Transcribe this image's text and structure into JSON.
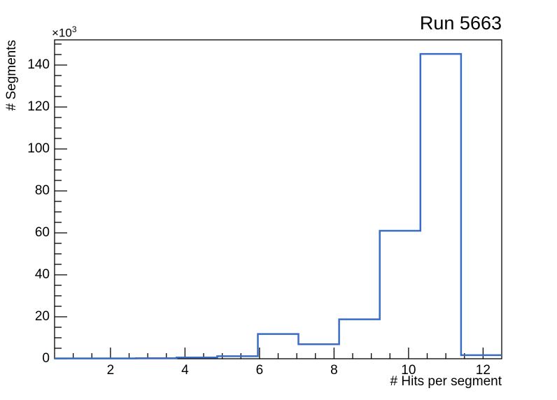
{
  "chart_data": {
    "type": "histogram-step",
    "title": "Run 5663",
    "xlabel": "# Hits per segment",
    "ylabel": "# Segments",
    "y_axis_exponent": "×10",
    "y_axis_exponent_power": "3",
    "y_unit_note": "y values expressed in thousands (axis shows ×10^3)",
    "xlim": [
      0.5,
      12.5
    ],
    "ylim": [
      0,
      152
    ],
    "n_bins": 11,
    "bin_edges": [
      0.5,
      1.591,
      2.682,
      3.773,
      4.864,
      5.955,
      7.045,
      8.136,
      9.227,
      10.318,
      11.409,
      12.5
    ],
    "values_thousands": [
      0.15,
      0.15,
      0.25,
      0.6,
      1.2,
      11.8,
      6.9,
      18.8,
      61.0,
      145.3,
      1.7
    ],
    "x_major_ticks": [
      2,
      4,
      6,
      8,
      10,
      12
    ],
    "x_minor_step": 0.5,
    "y_major_ticks": [
      0,
      20,
      40,
      60,
      80,
      100,
      120,
      140
    ],
    "y_minor_step": 5,
    "grid": false,
    "legend": null,
    "line_color": "#3a6bc5",
    "axis_color": "#000000",
    "background_color": "#ffffff"
  }
}
